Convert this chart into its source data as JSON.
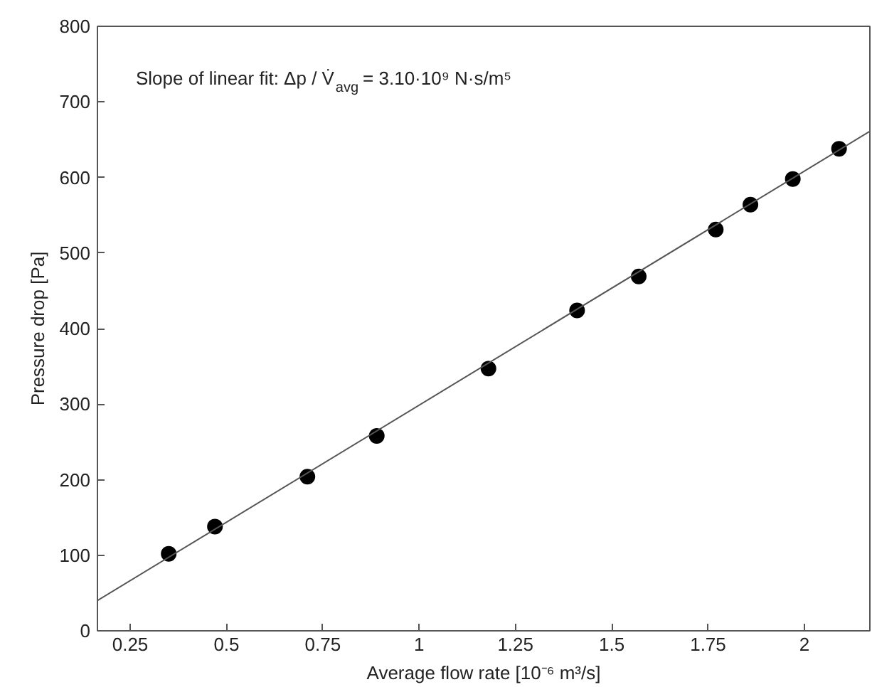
{
  "chart_data": {
    "type": "scatter",
    "xlabel": "Average flow rate [10⁻⁶ m³/s]",
    "ylabel": "Pressure drop [Pa]",
    "annotations": [
      "Slope of linear fit: Δp / V̇$_{avg}$ = 3.10·10⁹ N·s/m⁵"
    ],
    "xlim": [
      0.165,
      2.17
    ],
    "xticks": [
      0.25,
      0.5,
      0.75,
      1,
      1.25,
      1.5,
      1.75,
      2
    ],
    "ylim": [
      0,
      800
    ],
    "yticks": [
      0,
      100,
      200,
      300,
      400,
      500,
      600,
      700,
      800
    ],
    "grid": false,
    "series": [
      {
        "marker": "circle",
        "color": "#000000",
        "x": [
          0.35,
          0.47,
          0.71,
          0.89,
          1.18,
          1.41,
          1.57,
          1.77,
          1.86,
          1.97,
          2.09
        ],
        "values": [
          102,
          138,
          204,
          258,
          347,
          424,
          469,
          531,
          564,
          598,
          638
        ]
      },
      {
        "type": "line",
        "line_style": "solid",
        "color": "#555555",
        "x": [
          0.165,
          2.17
        ],
        "values": [
          40,
          661
        ]
      }
    ]
  }
}
